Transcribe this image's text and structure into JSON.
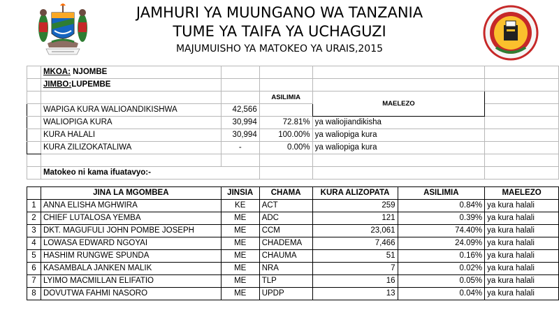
{
  "header": {
    "line1": "JAMHURI YA MUUNGANO WA TANZANIA",
    "line2": "TUME YA TAIFA YA UCHAGUZI",
    "line3": "MAJUMUISHO YA MATOKEO YA URAIS,2015"
  },
  "summary": {
    "mkoa_label": "MKOA:",
    "mkoa_value": " NJOMBE",
    "jimbo_label": "JIMBO:",
    "jimbo_value": "LUPEMBE",
    "col_asilimia": "ASILIMIA",
    "col_maelezo": "MAELEZO",
    "rows": [
      {
        "label": "WAPIGA KURA WALIOANDIKISHWA",
        "value": "42,566",
        "percent": "",
        "note": ""
      },
      {
        "label": "WALIOPIGA KURA",
        "value": "30,994",
        "percent": "72.81%",
        "note": "ya waliojiandikisha"
      },
      {
        "label": "KURA HALALI",
        "value": "30,994",
        "percent": "100.00%",
        "note": "ya waliopiga kura"
      },
      {
        "label": "KURA ZILIZOKATALIWA",
        "value": "-",
        "percent": "0.00%",
        "note": "ya waliopiga kura"
      }
    ],
    "results_intro": "Matokeo ni kama ifuatavyo:-"
  },
  "results": {
    "headers": {
      "name": "JINA LA MGOMBEA",
      "gender": "JINSIA",
      "party": "CHAMA",
      "votes": "KURA ALIZOPATA",
      "percent": "ASILIMIA",
      "note": "MAELEZO"
    },
    "rows": [
      {
        "n": "1",
        "name": "ANNA ELISHA MGHWIRA",
        "gender": "KE",
        "party": "ACT",
        "votes": "259",
        "percent": "0.84%",
        "note": "ya kura halali"
      },
      {
        "n": "2",
        "name": "CHIEF LUTALOSA YEMBA",
        "gender": "ME",
        "party": "ADC",
        "votes": "121",
        "percent": "0.39%",
        "note": "ya kura halali"
      },
      {
        "n": "3",
        "name": "DKT. MAGUFULI JOHN POMBE JOSEPH",
        "gender": "ME",
        "party": "CCM",
        "votes": "23,061",
        "percent": "74.40%",
        "note": "ya kura halali"
      },
      {
        "n": "4",
        "name": "LOWASA EDWARD NGOYAI",
        "gender": "ME",
        "party": "CHADEMA",
        "votes": "7,466",
        "percent": "24.09%",
        "note": "ya kura halali"
      },
      {
        "n": "5",
        "name": "HASHIM RUNGWE SPUNDA",
        "gender": "ME",
        "party": "CHAUMA",
        "votes": "51",
        "percent": "0.16%",
        "note": "ya kura halali"
      },
      {
        "n": "6",
        "name": "KASAMBALA JANKEN MALIK",
        "gender": "ME",
        "party": "NRA",
        "votes": "7",
        "percent": "0.02%",
        "note": "ya kura halali"
      },
      {
        "n": "7",
        "name": "LYIMO MACMILLAN ELIFATIO",
        "gender": "ME",
        "party": "TLP",
        "votes": "16",
        "percent": "0.05%",
        "note": "ya kura halali"
      },
      {
        "n": "8",
        "name": "DOVUTWA FAHMI NASORO",
        "gender": "ME",
        "party": "UPDP",
        "votes": "13",
        "percent": "0.04%",
        "note": "ya kura halali"
      }
    ]
  }
}
